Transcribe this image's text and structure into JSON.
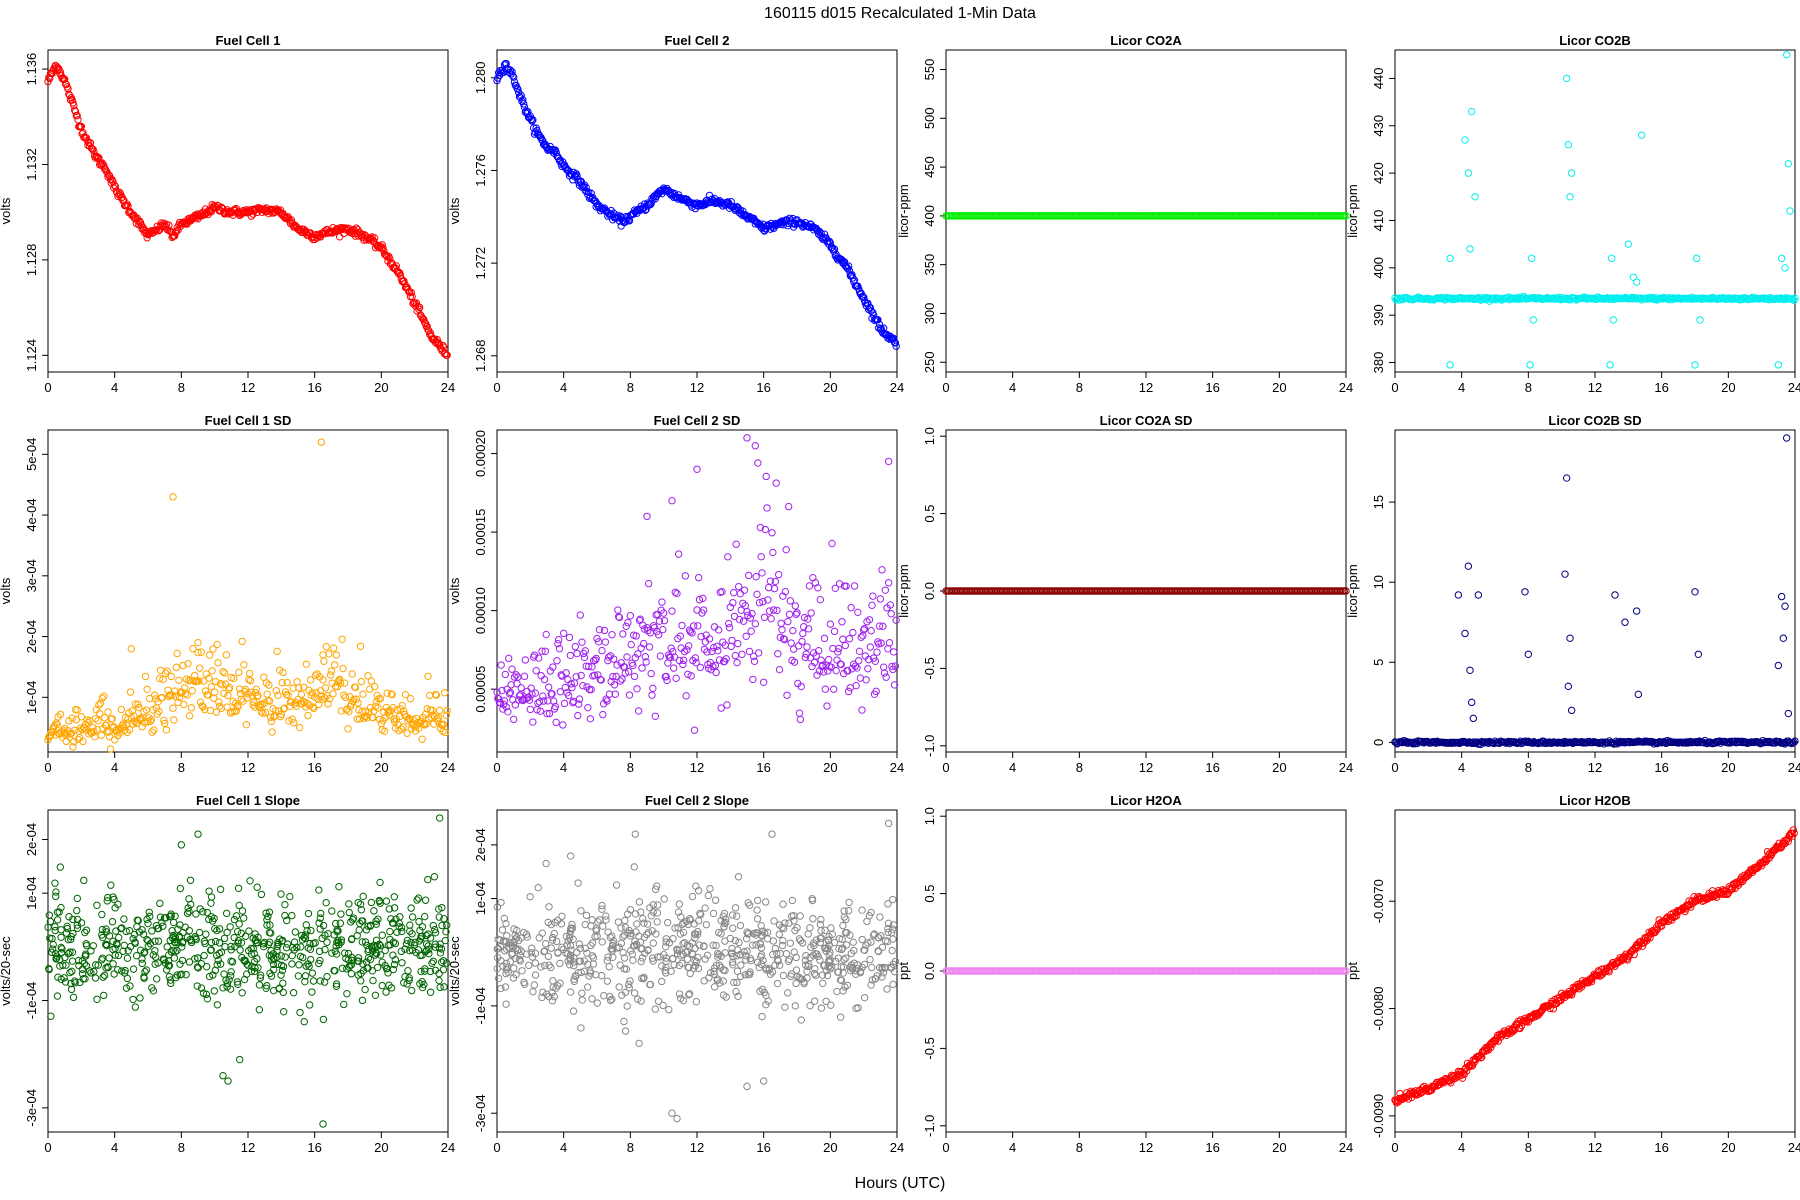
{
  "figure_title": "160115   d015   Recalculated 1-Min Data",
  "common_xlabel": "Hours (UTC)",
  "chart_data": [
    {
      "type": "scatter",
      "title": "Fuel Cell 1",
      "ylabel": "volts",
      "color": "#ff0000",
      "xlim": [
        0,
        24
      ],
      "ylim": [
        1.1233,
        1.1368
      ],
      "xticks": [
        0,
        4,
        8,
        12,
        16,
        20,
        24
      ],
      "yticks": [
        1.124,
        1.128,
        1.132,
        1.136
      ],
      "ytick_labels": [
        "1.124",
        "1.128",
        "1.132",
        "1.136"
      ],
      "series": [
        {
          "x": [
            0,
            0.5,
            1,
            1.5,
            2,
            2.5,
            3,
            3.5,
            4,
            5,
            6,
            7,
            7.5,
            8,
            9,
            10,
            11,
            12,
            13,
            14,
            15,
            16,
            17,
            18,
            19,
            20,
            21,
            22,
            23,
            24
          ],
          "y": [
            1.1355,
            1.1362,
            1.1355,
            1.1345,
            1.1335,
            1.1328,
            1.1322,
            1.1318,
            1.131,
            1.13,
            1.129,
            1.1295,
            1.129,
            1.1295,
            1.1298,
            1.1302,
            1.13,
            1.13,
            1.1301,
            1.13,
            1.1293,
            1.129,
            1.1292,
            1.1293,
            1.129,
            1.1285,
            1.1275,
            1.1262,
            1.1248,
            1.124
          ]
        }
      ]
    },
    {
      "type": "scatter",
      "title": "Fuel Cell 2",
      "ylabel": "volts",
      "color": "#0000ff",
      "xlim": [
        0,
        24
      ],
      "ylim": [
        1.2673,
        1.2812
      ],
      "xticks": [
        0,
        4,
        8,
        12,
        16,
        20,
        24
      ],
      "yticks": [
        1.268,
        1.272,
        1.276,
        1.28
      ],
      "ytick_labels": [
        "1.268",
        "1.272",
        "1.276",
        "1.280"
      ],
      "series": [
        {
          "x": [
            0,
            0.5,
            1,
            1.5,
            2,
            2.5,
            3,
            3.5,
            4,
            5,
            6,
            7,
            7.5,
            8,
            9,
            10,
            11,
            12,
            13,
            14,
            15,
            16,
            17,
            18,
            19,
            20,
            21,
            22,
            23,
            24
          ],
          "y": [
            1.28,
            1.2806,
            1.28,
            1.279,
            1.2782,
            1.2775,
            1.277,
            1.2768,
            1.2762,
            1.2755,
            1.2745,
            1.274,
            1.2738,
            1.274,
            1.2745,
            1.2752,
            1.2748,
            1.2745,
            1.2747,
            1.2745,
            1.274,
            1.2735,
            1.2737,
            1.2738,
            1.2735,
            1.2728,
            1.2718,
            1.2705,
            1.2692,
            1.2685
          ]
        }
      ]
    },
    {
      "type": "scatter",
      "title": "Licor CO2A",
      "ylabel": "licor-ppm",
      "color": "#00ee00",
      "xlim": [
        0,
        24
      ],
      "ylim": [
        240,
        570
      ],
      "xticks": [
        0,
        4,
        8,
        12,
        16,
        20,
        24
      ],
      "yticks": [
        250,
        300,
        350,
        400,
        450,
        500,
        550
      ],
      "ytick_labels": [
        "250",
        "300",
        "350",
        "400",
        "450",
        "500",
        "550"
      ],
      "series": [
        {
          "x": [
            0,
            24
          ],
          "y": [
            400,
            400
          ]
        }
      ]
    },
    {
      "type": "scatter",
      "title": "Licor CO2B",
      "ylabel": "licor-ppm",
      "color": "#00eeee",
      "xlim": [
        0,
        24
      ],
      "ylim": [
        378,
        446
      ],
      "xticks": [
        0,
        4,
        8,
        12,
        16,
        20,
        24
      ],
      "yticks": [
        380,
        390,
        400,
        410,
        420,
        430,
        440
      ],
      "ytick_labels": [
        "380",
        "390",
        "400",
        "410",
        "420",
        "430",
        "440"
      ],
      "series": [
        {
          "baseline": 393.5,
          "spikes": [
            [
              3.3,
              379.5
            ],
            [
              3.3,
              402
            ],
            [
              4.2,
              427
            ],
            [
              4.4,
              420
            ],
            [
              4.6,
              433
            ],
            [
              4.8,
              415
            ],
            [
              4.5,
              404
            ],
            [
              8.1,
              379.5
            ],
            [
              8.2,
              402
            ],
            [
              8.3,
              389
            ],
            [
              10.3,
              440
            ],
            [
              10.4,
              426
            ],
            [
              10.5,
              415
            ],
            [
              10.6,
              420
            ],
            [
              12.9,
              379.5
            ],
            [
              13.0,
              402
            ],
            [
              13.1,
              389
            ],
            [
              14.0,
              405
            ],
            [
              14.3,
              398
            ],
            [
              14.5,
              397
            ],
            [
              14.8,
              428
            ],
            [
              18.0,
              379.5
            ],
            [
              18.1,
              402
            ],
            [
              18.3,
              389
            ],
            [
              23.0,
              379.5
            ],
            [
              23.2,
              402
            ],
            [
              23.5,
              445
            ],
            [
              23.6,
              422
            ],
            [
              23.7,
              412
            ],
            [
              23.4,
              400
            ]
          ]
        }
      ]
    },
    {
      "type": "scatter",
      "title": "Fuel Cell 1 SD",
      "ylabel": "volts",
      "color": "#ffa500",
      "xlim": [
        0,
        24
      ],
      "ylim": [
        1e-05,
        0.00054
      ],
      "xticks": [
        0,
        4,
        8,
        12,
        16,
        20,
        24
      ],
      "yticks": [
        0.0001,
        0.0002,
        0.0003,
        0.0004,
        0.0005
      ],
      "ytick_labels": [
        "1e-04",
        "2e-04",
        "3e-04",
        "4e-04",
        "5e-04"
      ],
      "series": [
        {
          "x": [
            0,
            2,
            4,
            6,
            8,
            10,
            12,
            14,
            16,
            17,
            18,
            20,
            22,
            24
          ],
          "y": [
            4e-05,
            5e-05,
            5e-05,
            7e-05,
            0.00011,
            0.00012,
            0.0001,
            8e-05,
            0.00011,
            0.00013,
            9e-05,
            7e-05,
            6e-05,
            7e-05
          ],
          "outliers": [
            [
              7.5,
              0.00043
            ],
            [
              16.4,
              0.00052
            ],
            [
              5.0,
              0.00018
            ],
            [
              9.0,
              0.00019
            ],
            [
              16.5,
              0.00017
            ]
          ]
        }
      ]
    },
    {
      "type": "scatter",
      "title": "Fuel Cell 2 SD",
      "ylabel": "volts",
      "color": "#a020f0",
      "xlim": [
        0,
        24
      ],
      "ylim": [
        1e-05,
        0.000215
      ],
      "xticks": [
        0,
        4,
        8,
        12,
        16,
        20,
        24
      ],
      "yticks": [
        5e-05,
        0.0001,
        0.00015,
        0.0002
      ],
      "ytick_labels": [
        "0.00005",
        "0.00010",
        "0.00015",
        "0.00020"
      ],
      "series": [
        {
          "x": [
            0,
            2,
            4,
            6,
            8,
            10,
            12,
            14,
            16,
            18,
            20,
            22,
            24
          ],
          "y": [
            4e-05,
            5e-05,
            5e-05,
            6e-05,
            7e-05,
            8e-05,
            8e-05,
            8e-05,
            0.00011,
            8e-05,
            7e-05,
            7e-05,
            8e-05
          ],
          "outliers": [
            [
              15,
              0.00021
            ],
            [
              15.5,
              0.000205
            ],
            [
              23.5,
              0.000195
            ],
            [
              12,
              0.00019
            ],
            [
              10.5,
              0.00017
            ],
            [
              9,
              0.00016
            ]
          ]
        }
      ]
    },
    {
      "type": "scatter",
      "title": "Licor CO2A SD",
      "ylabel": "licor-ppm",
      "color": "#8b0000",
      "xlim": [
        0,
        24
      ],
      "ylim": [
        -1.04,
        1.04
      ],
      "xticks": [
        0,
        4,
        8,
        12,
        16,
        20,
        24
      ],
      "yticks": [
        -1,
        -0.5,
        0,
        0.5,
        1
      ],
      "ytick_labels": [
        "-1.0",
        "-0.5",
        "0.0",
        "0.5",
        "1.0"
      ],
      "series": [
        {
          "x": [
            0,
            24
          ],
          "y": [
            0,
            0
          ]
        }
      ]
    },
    {
      "type": "scatter",
      "title": "Licor CO2B SD",
      "ylabel": "licor-ppm",
      "color": "#000080",
      "xlim": [
        0,
        24
      ],
      "ylim": [
        -0.6,
        19.5
      ],
      "xticks": [
        0,
        4,
        8,
        12,
        16,
        20,
        24
      ],
      "yticks": [
        0,
        5,
        10,
        15
      ],
      "ytick_labels": [
        "0",
        "5",
        "10",
        "15"
      ],
      "series": [
        {
          "baseline": 0,
          "spikes": [
            [
              3.8,
              9.2
            ],
            [
              4.4,
              11
            ],
            [
              4.2,
              6.8
            ],
            [
              4.5,
              4.5
            ],
            [
              4.6,
              2.5
            ],
            [
              4.7,
              1.5
            ],
            [
              5.0,
              9.2
            ],
            [
              7.8,
              9.4
            ],
            [
              8.0,
              5.5
            ],
            [
              10.3,
              16.5
            ],
            [
              10.2,
              10.5
            ],
            [
              10.5,
              6.5
            ],
            [
              10.4,
              3.5
            ],
            [
              10.6,
              2.0
            ],
            [
              13.2,
              9.2
            ],
            [
              13.8,
              7.5
            ],
            [
              14.5,
              8.2
            ],
            [
              14.6,
              3.0
            ],
            [
              18.0,
              9.4
            ],
            [
              18.2,
              5.5
            ],
            [
              23.0,
              4.8
            ],
            [
              23.2,
              9.1
            ],
            [
              23.4,
              8.5
            ],
            [
              23.3,
              6.5
            ],
            [
              23.5,
              19
            ],
            [
              23.6,
              1.8
            ]
          ]
        }
      ]
    },
    {
      "type": "scatter",
      "title": "Fuel Cell 1 Slope",
      "ylabel": "volts/20-sec",
      "color": "#006400",
      "xlim": [
        0,
        24
      ],
      "ylim": [
        -0.000345,
        0.000255
      ],
      "xticks": [
        0,
        4,
        8,
        12,
        16,
        20,
        24
      ],
      "yticks": [
        -0.0003,
        -0.0001,
        0.0001,
        0.0002
      ],
      "ytick_labels": [
        "-3e-04",
        "-1e-04",
        "1e-04",
        "2e-04"
      ],
      "series": [
        {
          "center": 0,
          "spread": 5e-05,
          "outliers": [
            [
              16.5,
              -0.00033
            ],
            [
              10.5,
              -0.00024
            ],
            [
              10.8,
              -0.00025
            ],
            [
              23.5,
              0.00024
            ],
            [
              9.0,
              0.00021
            ],
            [
              8.0,
              0.00019
            ],
            [
              11.5,
              -0.00021
            ]
          ]
        }
      ]
    },
    {
      "type": "scatter",
      "title": "Fuel Cell 2 Slope",
      "ylabel": "volts/20-sec",
      "color": "#888888",
      "xlim": [
        0,
        24
      ],
      "ylim": [
        -0.000335,
        0.000265
      ],
      "xticks": [
        0,
        4,
        8,
        12,
        16,
        20,
        24
      ],
      "yticks": [
        -0.0003,
        -0.0001,
        0.0001,
        0.0002
      ],
      "ytick_labels": [
        "-3e-04",
        "-1e-04",
        "1e-04",
        "2e-04"
      ],
      "series": [
        {
          "center": 0,
          "spread": 5e-05,
          "outliers": [
            [
              10.8,
              -0.00031
            ],
            [
              10.5,
              -0.0003
            ],
            [
              8.3,
              0.00022
            ],
            [
              16.5,
              0.00022
            ],
            [
              23.5,
              0.00024
            ],
            [
              15,
              -0.00025
            ],
            [
              16,
              -0.00024
            ]
          ]
        }
      ]
    },
    {
      "type": "scatter",
      "title": "Licor H2OA",
      "ylabel": "ppt",
      "color": "#ee82ee",
      "xlim": [
        0,
        24
      ],
      "ylim": [
        -1.04,
        1.04
      ],
      "xticks": [
        0,
        4,
        8,
        12,
        16,
        20,
        24
      ],
      "yticks": [
        -1,
        -0.5,
        0,
        0.5,
        1
      ],
      "ytick_labels": [
        "-1.0",
        "-0.5",
        "0.0",
        "0.5",
        "1.0"
      ],
      "series": [
        {
          "x": [
            0,
            24
          ],
          "y": [
            0,
            0
          ]
        }
      ]
    },
    {
      "type": "scatter",
      "title": "Licor H2OB",
      "ylabel": "ppt",
      "color": "#ff0000",
      "xlim": [
        0,
        24
      ],
      "ylim": [
        -0.00915,
        -0.00615
      ],
      "xticks": [
        0,
        4,
        8,
        12,
        16,
        20,
        24
      ],
      "yticks": [
        -0.009,
        -0.008,
        -0.007
      ],
      "ytick_labels": [
        "-0.0090",
        "-0.0080",
        "-0.0070"
      ],
      "series": [
        {
          "x": [
            0,
            2,
            4,
            6,
            8,
            10,
            12,
            14,
            16,
            18,
            20,
            22,
            24
          ],
          "y": [
            -0.00885,
            -0.00875,
            -0.0086,
            -0.0083,
            -0.0081,
            -0.0079,
            -0.0077,
            -0.0075,
            -0.0072,
            -0.007,
            -0.0069,
            -0.00665,
            -0.00635
          ]
        }
      ]
    }
  ]
}
